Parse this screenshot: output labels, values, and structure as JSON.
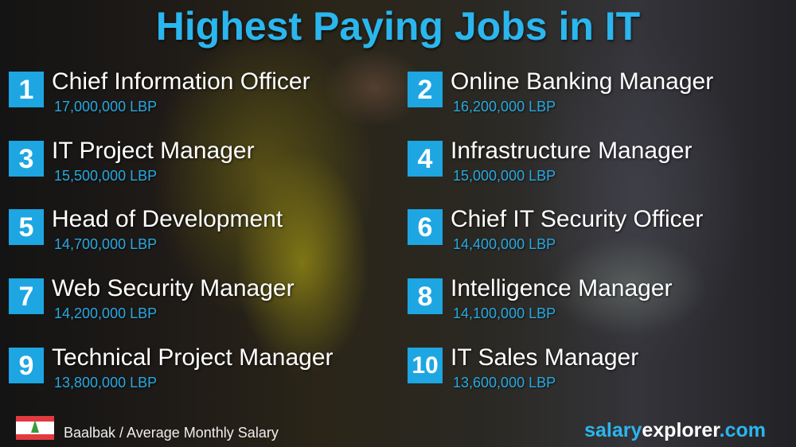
{
  "title": "Highest Paying Jobs in IT",
  "jobs": [
    {
      "rank": "1",
      "title": "Chief Information Officer",
      "salary": "17,000,000 LBP"
    },
    {
      "rank": "2",
      "title": "Online Banking Manager",
      "salary": "16,200,000 LBP"
    },
    {
      "rank": "3",
      "title": "IT Project Manager",
      "salary": "15,500,000 LBP"
    },
    {
      "rank": "4",
      "title": "Infrastructure Manager",
      "salary": "15,000,000 LBP"
    },
    {
      "rank": "5",
      "title": "Head of Development",
      "salary": "14,700,000 LBP"
    },
    {
      "rank": "6",
      "title": "Chief IT Security Officer",
      "salary": "14,400,000 LBP"
    },
    {
      "rank": "7",
      "title": "Web Security Manager",
      "salary": "14,200,000 LBP"
    },
    {
      "rank": "8",
      "title": "Intelligence Manager",
      "salary": "14,100,000 LBP"
    },
    {
      "rank": "9",
      "title": "Technical Project Manager",
      "salary": "13,800,000 LBP"
    },
    {
      "rank": "10",
      "title": "IT Sales Manager",
      "salary": "13,600,000 LBP"
    }
  ],
  "footer": {
    "location": "Baalbak / Average Monthly Salary",
    "brand_a": "salary",
    "brand_b": "explorer",
    "brand_c": ".com",
    "flag": "lebanon-flag"
  },
  "colors": {
    "accent": "#1da6e2"
  }
}
